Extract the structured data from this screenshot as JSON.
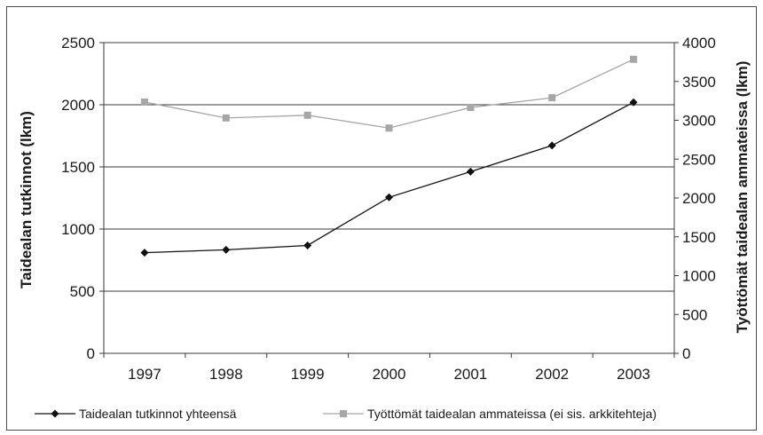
{
  "chart_data": {
    "type": "line",
    "categories": [
      "1997",
      "1998",
      "1999",
      "2000",
      "2001",
      "2002",
      "2003"
    ],
    "series": [
      {
        "name": "Taidealan tutkinnot yhteensä",
        "axis": "left",
        "color": "#111111",
        "marker": "diamond",
        "values": [
          810,
          833,
          868,
          1255,
          1462,
          1672,
          2020
        ]
      },
      {
        "name": "Työttömät taidealan ammateissa (ei sis. arkkitehteja)",
        "axis": "right",
        "color": "#a6a6a6",
        "marker": "square",
        "values": [
          3235,
          3030,
          3065,
          2900,
          3165,
          3290,
          3785
        ]
      }
    ],
    "ylabel": "Taidealan tutkinnot (lkm)",
    "ylabel_right": "Työttömät taidealan ammateissa (lkm)",
    "ylim": [
      0,
      2500
    ],
    "ylim_right": [
      0,
      4000
    ],
    "yticks": [
      "0",
      "500",
      "1000",
      "1500",
      "2000",
      "2500"
    ],
    "yticks_right": [
      "0",
      "500",
      "1000",
      "1500",
      "2000",
      "2500",
      "3000",
      "3500",
      "4000"
    ],
    "grid": true,
    "legend_position": "bottom"
  }
}
